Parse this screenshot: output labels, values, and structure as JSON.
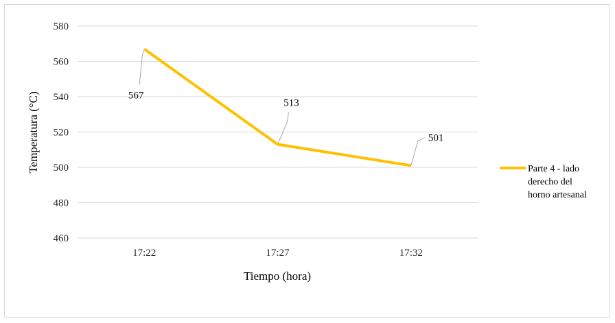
{
  "chart_data": {
    "type": "line",
    "title": "",
    "xlabel": "Tiempo (hora)",
    "ylabel": "Temperatura (°C)",
    "categories": [
      "17:22",
      "17:27",
      "17:32"
    ],
    "ylim": [
      460,
      580
    ],
    "yticks": [
      460,
      480,
      500,
      520,
      540,
      560,
      580
    ],
    "grid": true,
    "legend_position": "right",
    "series": [
      {
        "name": "Parte 4 - lado derecho del horno artesanal",
        "values": [
          567,
          513,
          501
        ],
        "data_labels": [
          "567",
          "513",
          "501"
        ],
        "color": "#FFC000"
      }
    ]
  },
  "legend": {
    "lines": [
      "Parte 4 - lado",
      "derecho del",
      "horno artesanal"
    ]
  },
  "colors": {
    "gridline": "#d9d9d9",
    "leader_line": "#a6a6a6",
    "series": "#FFC000"
  }
}
